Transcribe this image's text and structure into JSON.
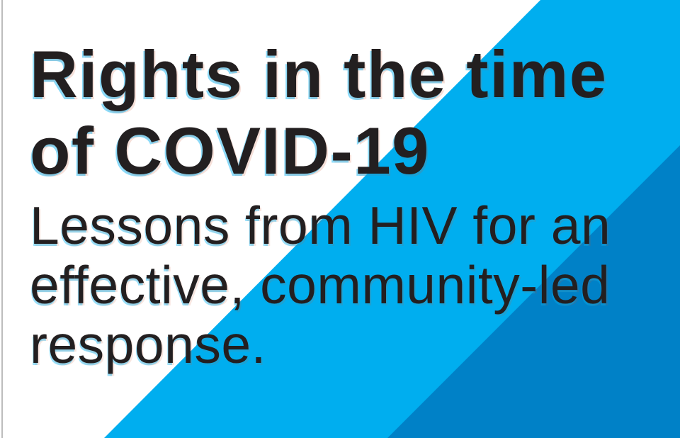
{
  "document": {
    "title": {
      "lines": {
        "0": "Rights in the time",
        "1": "of COVID-19"
      }
    },
    "subtitle": {
      "lines": {
        "0": "Lessons from HIV for an",
        "1": "effective, community-led",
        "2": "response."
      }
    }
  },
  "colors": {
    "background": "#ffffff",
    "accent_light_blue": "#00aeef",
    "accent_dark_blue": "#0081c7",
    "text": "#231f20",
    "page_edge_line": "#bdbdbd"
  }
}
